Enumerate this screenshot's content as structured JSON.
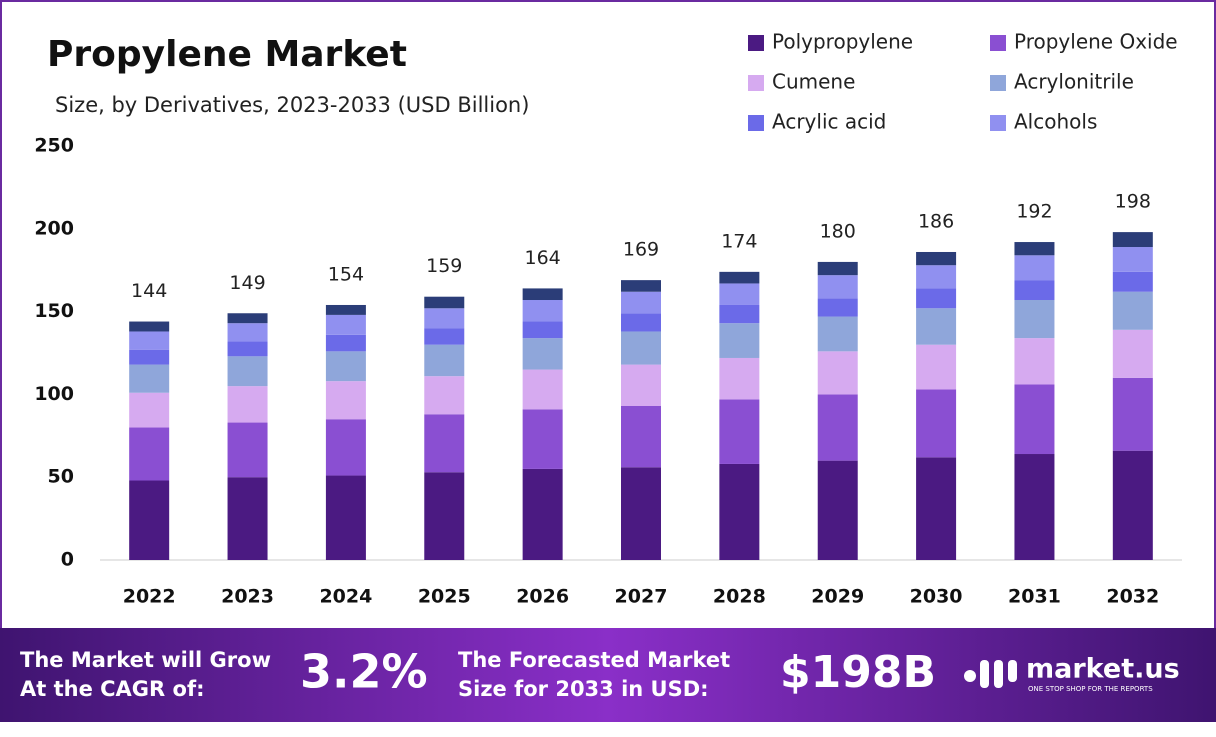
{
  "chart_data": {
    "type": "stacked_bar",
    "title": "Propylene Market",
    "subtitle": "Size, by Derivatives, 2023-2033 (USD Billion)",
    "categories": [
      "2022",
      "2023",
      "2024",
      "2025",
      "2026",
      "2027",
      "2028",
      "2029",
      "2030",
      "2031",
      "2032"
    ],
    "series": [
      {
        "name": "Polypropylene",
        "color": "#4b1a82",
        "values": [
          48,
          50,
          51,
          53,
          55,
          56,
          58,
          60,
          62,
          64,
          66
        ]
      },
      {
        "name": "Propylene Oxide",
        "color": "#8a4fd2",
        "values": [
          32,
          33,
          34,
          35,
          36,
          37,
          39,
          40,
          41,
          42,
          44
        ]
      },
      {
        "name": "Cumene",
        "color": "#d6aaf0",
        "values": [
          21,
          22,
          23,
          23,
          24,
          25,
          25,
          26,
          27,
          28,
          29
        ]
      },
      {
        "name": "Acrylonitrile",
        "color": "#8fa6da",
        "values": [
          17,
          18,
          18,
          19,
          19,
          20,
          21,
          21,
          22,
          23,
          23
        ]
      },
      {
        "name": "Acrylic acid",
        "color": "#6b6ae8",
        "values": [
          9,
          9,
          10,
          10,
          10,
          11,
          11,
          11,
          12,
          12,
          12
        ]
      },
      {
        "name": "Alcohols",
        "color": "#9090f0",
        "values": [
          11,
          11,
          12,
          12,
          13,
          13,
          13,
          14,
          14,
          15,
          15
        ]
      },
      {
        "color": "#2b3d78",
        "values": [
          6,
          6,
          6,
          7,
          7,
          7,
          7,
          8,
          8,
          8,
          9
        ]
      }
    ],
    "totals": [
      144,
      149,
      154,
      159,
      164,
      169,
      174,
      180,
      186,
      192,
      198
    ],
    "ylim": [
      0,
      250
    ],
    "yticks": [
      0,
      50,
      100,
      150,
      200,
      250
    ],
    "grid": false
  },
  "footer": {
    "cagr_text": [
      "The Market will Grow",
      "At the CAGR of:"
    ],
    "cagr_value": "3.2%",
    "forecast_text": [
      "The Forecasted Market",
      "Size for 2033 in USD:"
    ],
    "forecast_value": "$198B",
    "brand": "market.us",
    "tagline": "ONE STOP SHOP FOR THE REPORTS"
  }
}
